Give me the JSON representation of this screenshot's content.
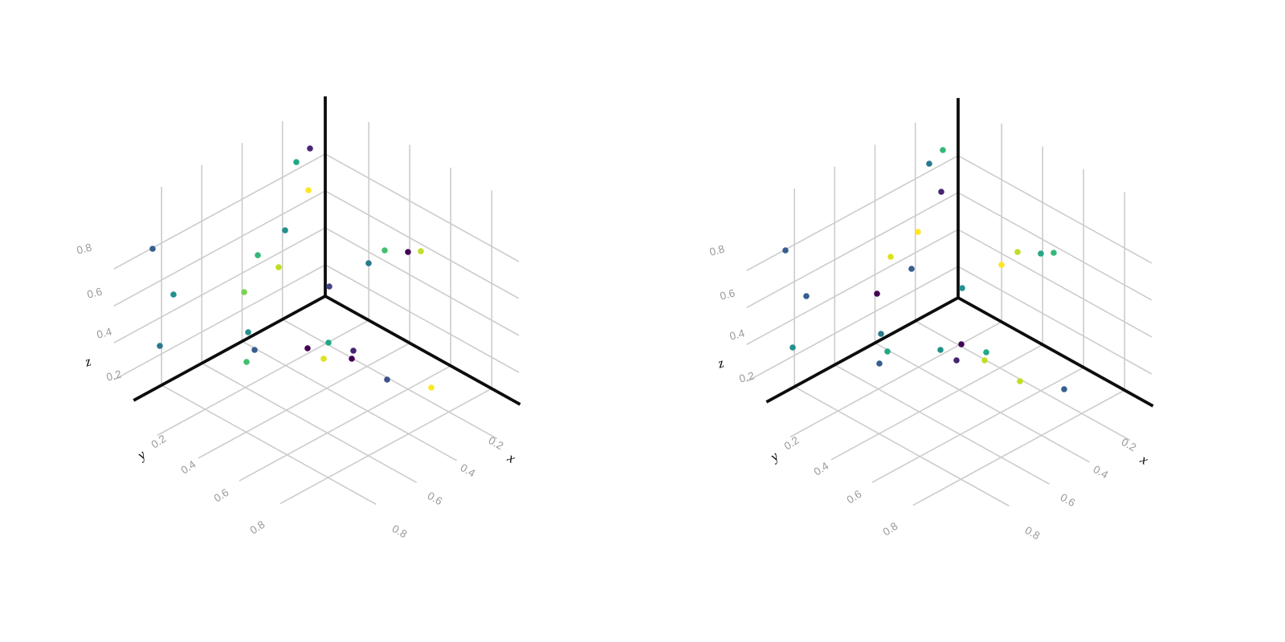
{
  "page": {
    "background": "#ffffff",
    "title": ""
  },
  "chart_data": [
    {
      "id": "left-3d-scatter",
      "type": "scatter",
      "subtype": "scatter3d",
      "title": "",
      "legend": null,
      "grid": true,
      "colormap": "viridis",
      "axes": {
        "x": {
          "label": "x",
          "ticks": [
            0.2,
            0.4,
            0.6,
            0.8
          ],
          "tick_labels": [
            "0.2",
            "0.4",
            "0.6",
            "0.8"
          ]
        },
        "y": {
          "label": "y",
          "ticks": [
            0.2,
            0.4,
            0.6,
            0.8
          ],
          "tick_labels": [
            "0.2",
            "0.4",
            "0.6",
            "0.8"
          ]
        },
        "z": {
          "label": "z",
          "ticks": [
            0.2,
            0.4,
            0.6,
            0.8
          ],
          "tick_labels": [
            "0.2",
            "0.4",
            "0.6",
            "0.8"
          ]
        }
      },
      "projection_note": "u,v are screen-projected marker offsets in px from the axes corner; exact 3D x/y/z values are not labeled in the image",
      "points": [
        {
          "u": -19,
          "v": -184,
          "color": "#482475"
        },
        {
          "u": -36,
          "v": -167,
          "color": "#22a884"
        },
        {
          "u": -21,
          "v": -132,
          "color": "#fde725"
        },
        {
          "u": -50,
          "v": -82,
          "color": "#21918c"
        },
        {
          "u": -215,
          "v": -59,
          "color": "#355f8d"
        },
        {
          "u": -84,
          "v": -51,
          "color": "#35b779"
        },
        {
          "u": -58,
          "v": -36,
          "color": "#bddf26"
        },
        {
          "u": -189,
          "v": -2,
          "color": "#21918c"
        },
        {
          "u": -101,
          "v": -5,
          "color": "#7ad151"
        },
        {
          "u": 5,
          "v": -12,
          "color": "#414487"
        },
        {
          "u": -206,
          "v": 62,
          "color": "#2a788e"
        },
        {
          "u": -96,
          "v": 45,
          "color": "#21918c"
        },
        {
          "u": -88,
          "v": 67,
          "color": "#355f8d"
        },
        {
          "u": -98,
          "v": 82,
          "color": "#44bf70"
        },
        {
          "u": 4,
          "v": 58,
          "color": "#22a884"
        },
        {
          "u": -22,
          "v": 65,
          "color": "#440154"
        },
        {
          "u": -2,
          "v": 78,
          "color": "#dde318"
        },
        {
          "u": 35,
          "v": 68,
          "color": "#482475"
        },
        {
          "u": 33,
          "v": 78,
          "color": "#440154"
        },
        {
          "u": 77,
          "v": 104,
          "color": "#3b528b"
        },
        {
          "u": 132,
          "v": 114,
          "color": "#fde725"
        },
        {
          "u": 74,
          "v": -57,
          "color": "#44bf70"
        },
        {
          "u": 103,
          "v": -55,
          "color": "#440154"
        },
        {
          "u": 119,
          "v": -56,
          "color": "#bddf26"
        },
        {
          "u": 54,
          "v": -41,
          "color": "#2a788e"
        }
      ]
    },
    {
      "id": "right-3d-scatter",
      "type": "scatter",
      "subtype": "scatter3d",
      "title": "",
      "legend": null,
      "grid": true,
      "colormap": "viridis",
      "axes": {
        "x": {
          "label": "x",
          "ticks": [
            0.2,
            0.4,
            0.6,
            0.8
          ],
          "tick_labels": [
            "0.2",
            "0.4",
            "0.6",
            "0.8"
          ]
        },
        "y": {
          "label": "y",
          "ticks": [
            0.2,
            0.4,
            0.6,
            0.8
          ],
          "tick_labels": [
            "0.2",
            "0.4",
            "0.6",
            "0.8"
          ]
        },
        "z": {
          "label": "z",
          "ticks": [
            0.2,
            0.4,
            0.6,
            0.8
          ],
          "tick_labels": [
            "0.2",
            "0.4",
            "0.6",
            "0.8"
          ]
        }
      },
      "projection_note": "same marker positions as left subplot, different color labels per point",
      "points": [
        {
          "u": -19,
          "v": -184,
          "color": "#35b779"
        },
        {
          "u": -36,
          "v": -167,
          "color": "#2a788e"
        },
        {
          "u": -21,
          "v": -132,
          "color": "#482475"
        },
        {
          "u": -50,
          "v": -82,
          "color": "#fde725"
        },
        {
          "u": -215,
          "v": -59,
          "color": "#355f8d"
        },
        {
          "u": -84,
          "v": -51,
          "color": "#dde318"
        },
        {
          "u": -58,
          "v": -36,
          "color": "#355f8d"
        },
        {
          "u": -189,
          "v": -2,
          "color": "#355f8d"
        },
        {
          "u": -101,
          "v": -5,
          "color": "#440154"
        },
        {
          "u": 5,
          "v": -12,
          "color": "#21918c"
        },
        {
          "u": -206,
          "v": 62,
          "color": "#21918c"
        },
        {
          "u": -96,
          "v": 45,
          "color": "#2a788e"
        },
        {
          "u": -88,
          "v": 67,
          "color": "#22a884"
        },
        {
          "u": -98,
          "v": 82,
          "color": "#355f8d"
        },
        {
          "u": 4,
          "v": 58,
          "color": "#440154"
        },
        {
          "u": -22,
          "v": 65,
          "color": "#21918c"
        },
        {
          "u": -2,
          "v": 78,
          "color": "#482475"
        },
        {
          "u": 35,
          "v": 68,
          "color": "#22a884"
        },
        {
          "u": 33,
          "v": 78,
          "color": "#bddf26"
        },
        {
          "u": 77,
          "v": 104,
          "color": "#bddf26"
        },
        {
          "u": 132,
          "v": 114,
          "color": "#355f8d"
        },
        {
          "u": 74,
          "v": -57,
          "color": "#bddf26"
        },
        {
          "u": 103,
          "v": -55,
          "color": "#22a884"
        },
        {
          "u": 119,
          "v": -56,
          "color": "#35b779"
        },
        {
          "u": 54,
          "v": -41,
          "color": "#fde725"
        }
      ]
    }
  ]
}
